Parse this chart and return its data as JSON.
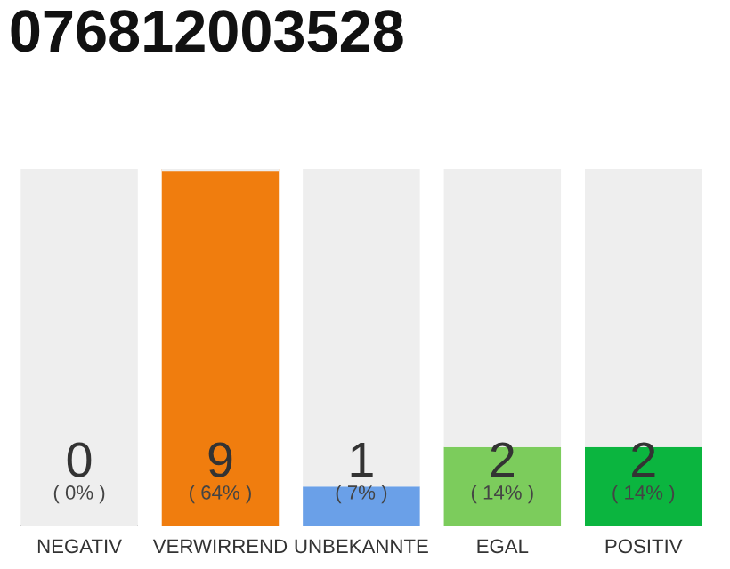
{
  "chart_data": {
    "type": "bar",
    "title": "076812003528",
    "categories": [
      "NEGATIV",
      "VERWIRREND",
      "UNBEKANNTE",
      "EGAL",
      "POSITIV"
    ],
    "stacked": true,
    "series": [
      {
        "colors": [
          "#555555",
          "#f07d0e",
          "#6aa0e8",
          "#7ccc5c",
          "#0bb53f"
        ],
        "values": [
          0,
          9,
          1,
          2,
          2
        ],
        "value_labels": [
          "0\n( 0% )",
          "9\n( 64% )",
          "1\n( 7% )",
          "2\n( 14% )",
          "2\n( 14% )"
        ]
      },
      {
        "color": "#eeeeee",
        "values": [
          9,
          0,
          8,
          7,
          7
        ]
      }
    ],
    "ylim": [
      0,
      9
    ],
    "tick_labels": "x",
    "grid": false,
    "legend": false
  }
}
